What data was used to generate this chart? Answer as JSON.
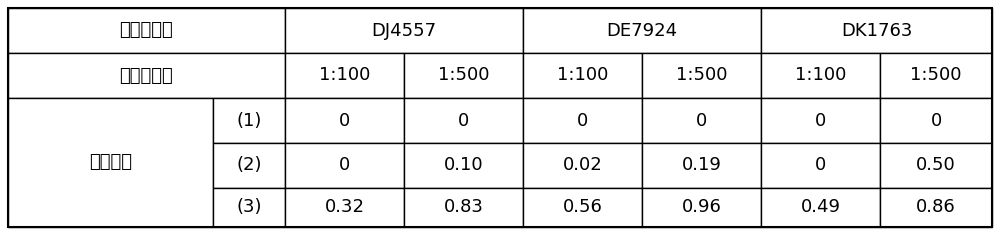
{
  "row_label_main": "过滤速度",
  "row0_left": "供试品批号",
  "row1_left": "供试液浓度",
  "batch_headers": [
    "DJ4557",
    "DE7924",
    "DK1763"
  ],
  "conc_labels": [
    "1:100",
    "1:500",
    "1:100",
    "1:500",
    "1:100",
    "1:500"
  ],
  "row_label_sub": [
    "(1)",
    "(2)",
    "(3)"
  ],
  "data_rows": [
    [
      "0",
      "0",
      "0",
      "0",
      "0",
      "0"
    ],
    [
      "0",
      "0.10",
      "0.02",
      "0.19",
      "0",
      "0.50"
    ],
    [
      "0.32",
      "0.83",
      "0.56",
      "0.96",
      "0.49",
      "0.86"
    ]
  ],
  "bg_color": "#ffffff",
  "border_color": "#000000",
  "text_color": "#000000",
  "font_size": 13,
  "lw": 1.0
}
